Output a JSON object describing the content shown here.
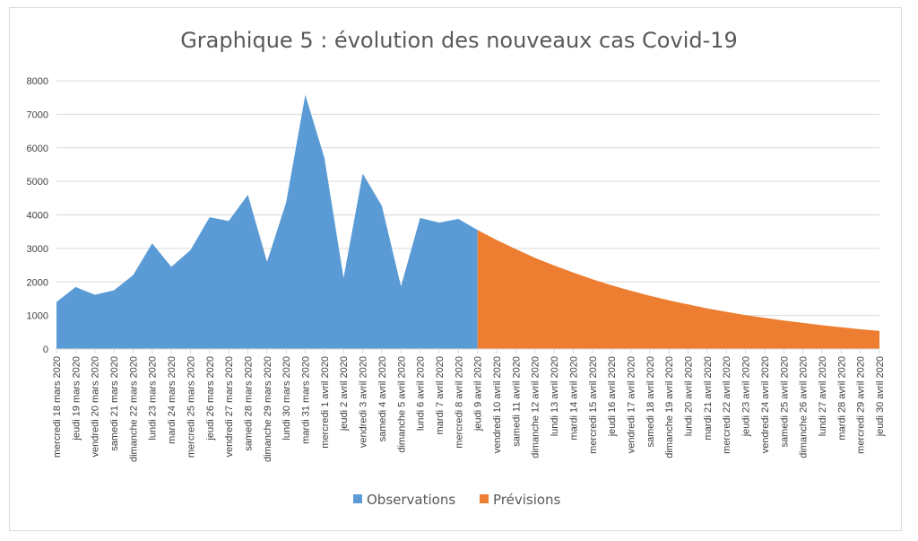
{
  "chart_data": {
    "type": "area",
    "title": "Graphique 5 : évolution des nouveaux cas Covid-19",
    "ylim": [
      0,
      8000
    ],
    "yticks": [
      0,
      1000,
      2000,
      3000,
      4000,
      5000,
      6000,
      7000,
      8000
    ],
    "grid": true,
    "legend_position": "bottom",
    "categories": [
      "mercredi 18 mars 2020",
      "jeudi 19 mars 2020",
      "vendredi 20 mars 2020",
      "samedi 21 mars 2020",
      "dimanche 22 mars 2020",
      "lundi 23 mars 2020",
      "mardi 24 mars 2020",
      "mercredi 25 mars 2020",
      "jeudi 26 mars 2020",
      "vendredi 27 mars 2020",
      "samedi 28 mars 2020",
      "dimanche 29 mars 2020",
      "lundi 30 mars 2020",
      "mardi 31 mars 2020",
      "mercredi 1 avril 2020",
      "jeudi 2 avril 2020",
      "vendredi 3 avril 2020",
      "samedi 4 avril 2020",
      "dimanche 5 avril 2020",
      "lundi 6 avril 2020",
      "mardi 7 avril 2020",
      "mercredi 8 avril 2020",
      "jeudi 9 avril 2020",
      "vendredi 10 avril 2020",
      "samedi 11 avril 2020",
      "dimanche 12 avril 2020",
      "lundi 13 avril 2020",
      "mardi 14 avril 2020",
      "mercredi 15 avril 2020",
      "jeudi 16 avril 2020",
      "vendredi 17 avril 2020",
      "samedi 18 avril 2020",
      "dimanche 19 avril 2020",
      "lundi 20 avril 2020",
      "mardi 21 avril 2020",
      "mercredi 22 avril 2020",
      "jeudi 23 avril 2020",
      "vendredi 24 avril 2020",
      "samedi 25 avril 2020",
      "dimanche 26 avril 2020",
      "lundi 27 avril 2020",
      "mardi 28 avril 2020",
      "mercredi 29 avril 2020",
      "jeudi 30 avril 2020"
    ],
    "series": [
      {
        "name": "Observations",
        "color": "#5b9bd5",
        "values": [
          1400,
          1850,
          1620,
          1750,
          2200,
          3150,
          2450,
          2950,
          3930,
          3820,
          4600,
          2600,
          4370,
          7580,
          5700,
          2120,
          5230,
          4270,
          1870,
          3910,
          3770,
          3880,
          3550,
          null,
          null,
          null,
          null,
          null,
          null,
          null,
          null,
          null,
          null,
          null,
          null,
          null,
          null,
          null,
          null,
          null,
          null,
          null,
          null,
          null
        ]
      },
      {
        "name": "Prévisions",
        "color": "#ed7d31",
        "values": [
          null,
          null,
          null,
          null,
          null,
          null,
          null,
          null,
          null,
          null,
          null,
          null,
          null,
          null,
          null,
          null,
          null,
          null,
          null,
          null,
          null,
          null,
          3550,
          3250,
          2980,
          2720,
          2490,
          2280,
          2080,
          1900,
          1740,
          1590,
          1450,
          1330,
          1210,
          1110,
          1010,
          930,
          850,
          780,
          710,
          650,
          590,
          540
        ]
      }
    ]
  }
}
